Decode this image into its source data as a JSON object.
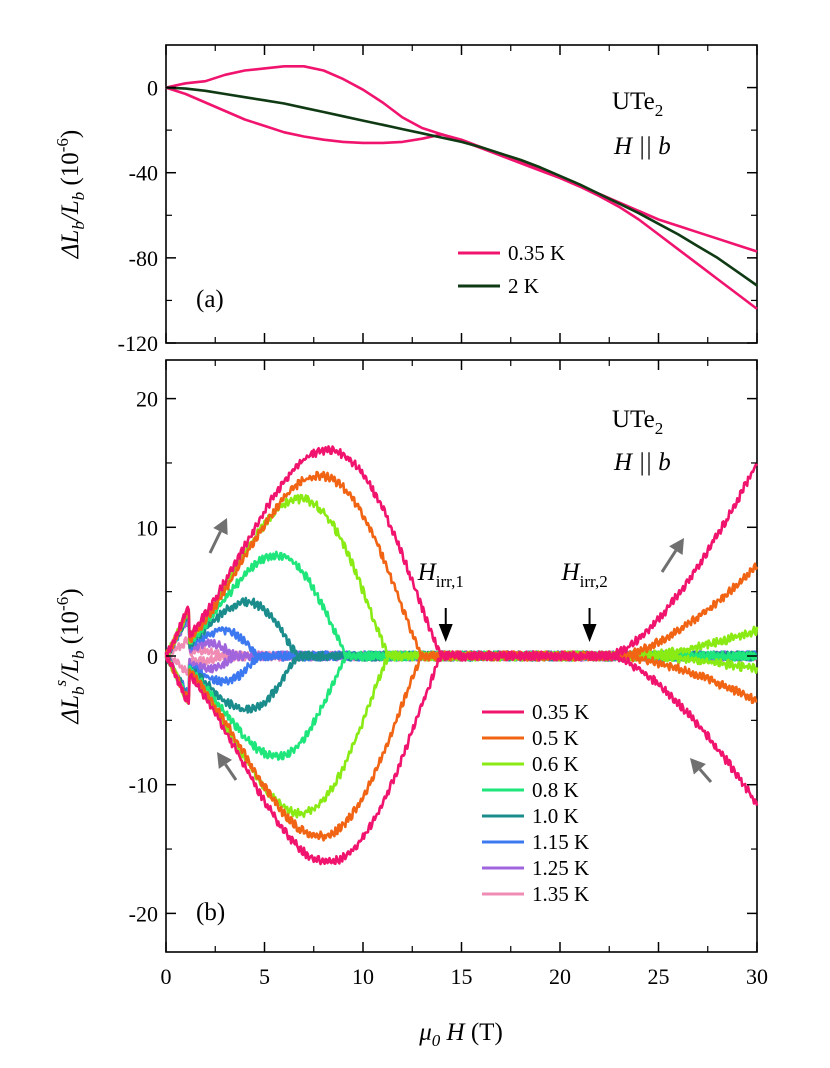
{
  "chart_data": [
    {
      "panel_label": "(a)",
      "type": "line",
      "ylabel_parts": [
        "ΔL",
        "b",
        "/L",
        "b",
        " (10",
        "-6",
        ")"
      ],
      "xlim": [
        0,
        30
      ],
      "ylim": [
        -120,
        20
      ],
      "yticks": [
        0,
        -40,
        -80,
        -120
      ],
      "yticklabels": [
        "0",
        "-40",
        "-80",
        "-120"
      ],
      "annotation": {
        "line1": "UTe",
        "line1_sub": "2",
        "line2": "H || b"
      },
      "legend": [
        "0.35 K",
        "2 K"
      ],
      "series": [
        {
          "name": "0.35 K",
          "color": "#f0146e",
          "branch": "up",
          "x": [
            0,
            0.5,
            1,
            2,
            3,
            4,
            5,
            6,
            7,
            8,
            9,
            10,
            11,
            12,
            13,
            14,
            15,
            16,
            17,
            18,
            19,
            20,
            21,
            22,
            23,
            24,
            25,
            26,
            27,
            28,
            29,
            30
          ],
          "y": [
            0,
            1,
            2,
            3,
            6,
            8,
            9,
            10,
            10,
            8,
            4,
            -1,
            -7,
            -14,
            -19,
            -22,
            -24.5,
            -28,
            -31.5,
            -35,
            -38.5,
            -42,
            -46,
            -50,
            -54,
            -58,
            -62,
            -65,
            -68,
            -71,
            -74,
            -77
          ]
        },
        {
          "name": "0.35 K",
          "color": "#f0146e",
          "branch": "down",
          "x": [
            0,
            1,
            2,
            3,
            4,
            5,
            6,
            7,
            8,
            9,
            10,
            11,
            12,
            13,
            14,
            15,
            16,
            17,
            18,
            19,
            20,
            21,
            22,
            23,
            24,
            25,
            26,
            27,
            28,
            29,
            30
          ],
          "y": [
            0,
            -3,
            -7,
            -11,
            -15,
            -18,
            -21,
            -23,
            -24.5,
            -25.5,
            -26,
            -26,
            -25.5,
            -24,
            -22,
            -25,
            -28.5,
            -32,
            -35.5,
            -39,
            -42.5,
            -46.5,
            -51,
            -56,
            -62,
            -69,
            -76,
            -83,
            -90,
            -97,
            -104
          ]
        },
        {
          "name": "2 K",
          "color": "#0f3a14",
          "branch": "both",
          "x": [
            0,
            1,
            2,
            3,
            4,
            5,
            6,
            7,
            8,
            9,
            10,
            11,
            12,
            13,
            14,
            15,
            16,
            17,
            18,
            19,
            20,
            21,
            22,
            23,
            24,
            25,
            26,
            27,
            28,
            29,
            30
          ],
          "y": [
            0,
            -0.5,
            -1.5,
            -3,
            -4.5,
            -6,
            -7.5,
            -9.5,
            -11.5,
            -13.5,
            -15.5,
            -17.5,
            -19.5,
            -21.5,
            -23.5,
            -25.5,
            -28,
            -31,
            -34,
            -37.5,
            -41.5,
            -45.5,
            -50,
            -54.5,
            -59,
            -64,
            -69,
            -74.5,
            -80,
            -86.5,
            -93
          ]
        }
      ]
    },
    {
      "panel_label": "(b)",
      "type": "line",
      "xlabel_parts": [
        "μ",
        "0",
        " H",
        " (T)"
      ],
      "ylabel_parts": [
        "ΔL",
        "b",
        "s",
        "/L",
        "b",
        " (10",
        "-6",
        ")"
      ],
      "xlim": [
        0,
        30
      ],
      "ylim": [
        -23,
        23
      ],
      "xticks": [
        0,
        5,
        10,
        15,
        20,
        25,
        30
      ],
      "xticklabels": [
        "0",
        "5",
        "10",
        "15",
        "20",
        "25",
        "30"
      ],
      "yticks": [
        20,
        10,
        0,
        -10,
        -20
      ],
      "yticklabels": [
        "20",
        "10",
        "0",
        "-10",
        "-20"
      ],
      "annotation": {
        "line1": "UTe",
        "line1_sub": "2",
        "line2": "H || b"
      },
      "markers": [
        {
          "label": "H",
          "sub": "irr,1",
          "x": 14.2
        },
        {
          "label": "H",
          "sub": "irr,2",
          "x": 21.5
        }
      ],
      "legend": [
        "0.35 K",
        "0.5 K",
        "0.6 K",
        "0.8 K",
        "1.0 K",
        "1.15 K",
        "1.25 K",
        "1.35 K"
      ],
      "series": [
        {
          "name": "0.35 K",
          "color": "#f0146e",
          "peak_x": 8.2,
          "amp": 16,
          "end_x": 14,
          "high": 15,
          "low": -11.5,
          "high_onset": 22.5
        },
        {
          "name": "0.5 K",
          "color": "#f06414",
          "peak_x": 7.8,
          "amp": 14,
          "end_x": 13,
          "high": 7,
          "low": -3.5,
          "high_onset": 23
        },
        {
          "name": "0.6 K",
          "color": "#8aea14",
          "peak_x": 6.8,
          "amp": 12.2,
          "end_x": 11.3,
          "high": 2,
          "low": -1,
          "high_onset": 24
        },
        {
          "name": "0.8 K",
          "color": "#1ee67a",
          "peak_x": 5.6,
          "amp": 7.8,
          "end_x": 9.2,
          "high": 0,
          "low": 0,
          "high_onset": 30
        },
        {
          "name": "1.0 K",
          "color": "#1a8c8c",
          "peak_x": 4.1,
          "amp": 4.2,
          "end_x": 6.7,
          "high": 0,
          "low": 0,
          "high_onset": 30
        },
        {
          "name": "1.15 K",
          "color": "#3c78f0",
          "peak_x": 2.9,
          "amp": 2,
          "end_x": 4.7,
          "high": 0,
          "low": 0,
          "high_onset": 30
        },
        {
          "name": "1.25 K",
          "color": "#a064dc",
          "peak_x": 2.2,
          "amp": 1,
          "end_x": 3.5,
          "high": 0,
          "low": 0,
          "high_onset": 30
        },
        {
          "name": "1.35 K",
          "color": "#f08cb4",
          "peak_x": 1.8,
          "amp": 0.4,
          "end_x": 2.8,
          "high": 0,
          "low": 0,
          "high_onset": 30
        }
      ],
      "arrows_color": "#707070"
    }
  ]
}
